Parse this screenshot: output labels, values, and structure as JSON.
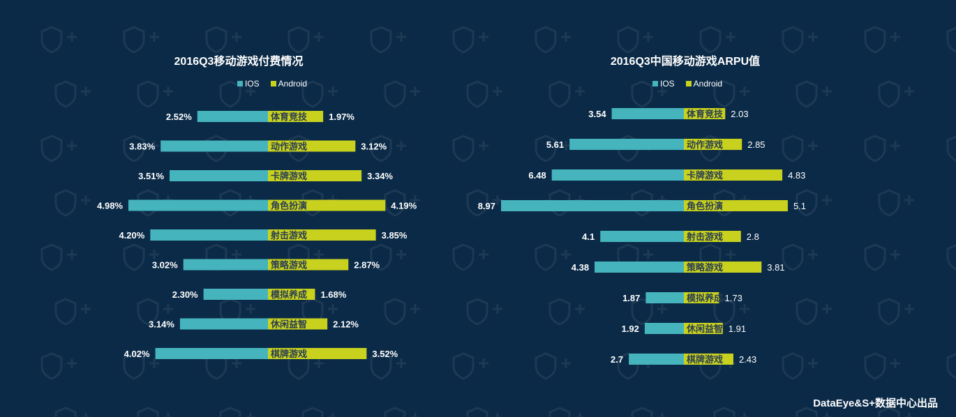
{
  "colors": {
    "ios": "#45b4bd",
    "android": "#c8d21e",
    "background": "#0b2a47",
    "category_text": "#2a3d52"
  },
  "footer": "DataEye&S+数据中心出品",
  "chart_data": [
    {
      "type": "bar",
      "title": "2016Q3移动游戏付费情况",
      "legend": [
        "IOS",
        "Android"
      ],
      "legend_position": "top-center",
      "orientation": "horizontal-butterfly",
      "categories": [
        "体育竞技",
        "动作游戏",
        "卡牌游戏",
        "角色扮演",
        "射击游戏",
        "策略游戏",
        "模拟养成",
        "休闲益智",
        "棋牌游戏"
      ],
      "series": [
        {
          "name": "IOS",
          "values": [
            2.52,
            3.83,
            3.51,
            4.98,
            4.2,
            3.02,
            2.3,
            3.14,
            4.02
          ],
          "labels": [
            "2.52%",
            "3.83%",
            "3.51%",
            "4.98%",
            "4.20%",
            "3.02%",
            "2.30%",
            "3.14%",
            "4.02%"
          ]
        },
        {
          "name": "Android",
          "values": [
            1.97,
            3.12,
            3.34,
            4.19,
            3.85,
            2.87,
            1.68,
            2.12,
            3.52
          ],
          "labels": [
            "1.97%",
            "3.12%",
            "3.34%",
            "4.19%",
            "3.85%",
            "2.87%",
            "1.68%",
            "2.12%",
            "3.52%"
          ]
        }
      ],
      "grid": false
    },
    {
      "type": "bar",
      "title": "2016Q3中国移动游戏ARPU值",
      "legend": [
        "IOS",
        "Android"
      ],
      "legend_position": "top-center",
      "orientation": "horizontal-butterfly",
      "categories": [
        "体育竞技",
        "动作游戏",
        "卡牌游戏",
        "角色扮演",
        "射击游戏",
        "策略游戏",
        "模拟养成",
        "休闲益智",
        "棋牌游戏"
      ],
      "series": [
        {
          "name": "IOS",
          "values": [
            3.54,
            5.61,
            6.48,
            8.97,
            4.1,
            4.38,
            1.87,
            1.92,
            2.7
          ],
          "labels": [
            "3.54",
            "5.61",
            "6.48",
            "8.97",
            "4.1",
            "4.38",
            "1.87",
            "1.92",
            "2.7"
          ]
        },
        {
          "name": "Android",
          "values": [
            2.03,
            2.85,
            4.83,
            5.1,
            2.8,
            3.81,
            1.73,
            1.91,
            2.43
          ],
          "labels": [
            "2.03",
            "2.85",
            "4.83",
            "5.1",
            "2.8",
            "3.81",
            "1.73",
            "1.91",
            "2.43"
          ]
        }
      ],
      "grid": false
    }
  ]
}
